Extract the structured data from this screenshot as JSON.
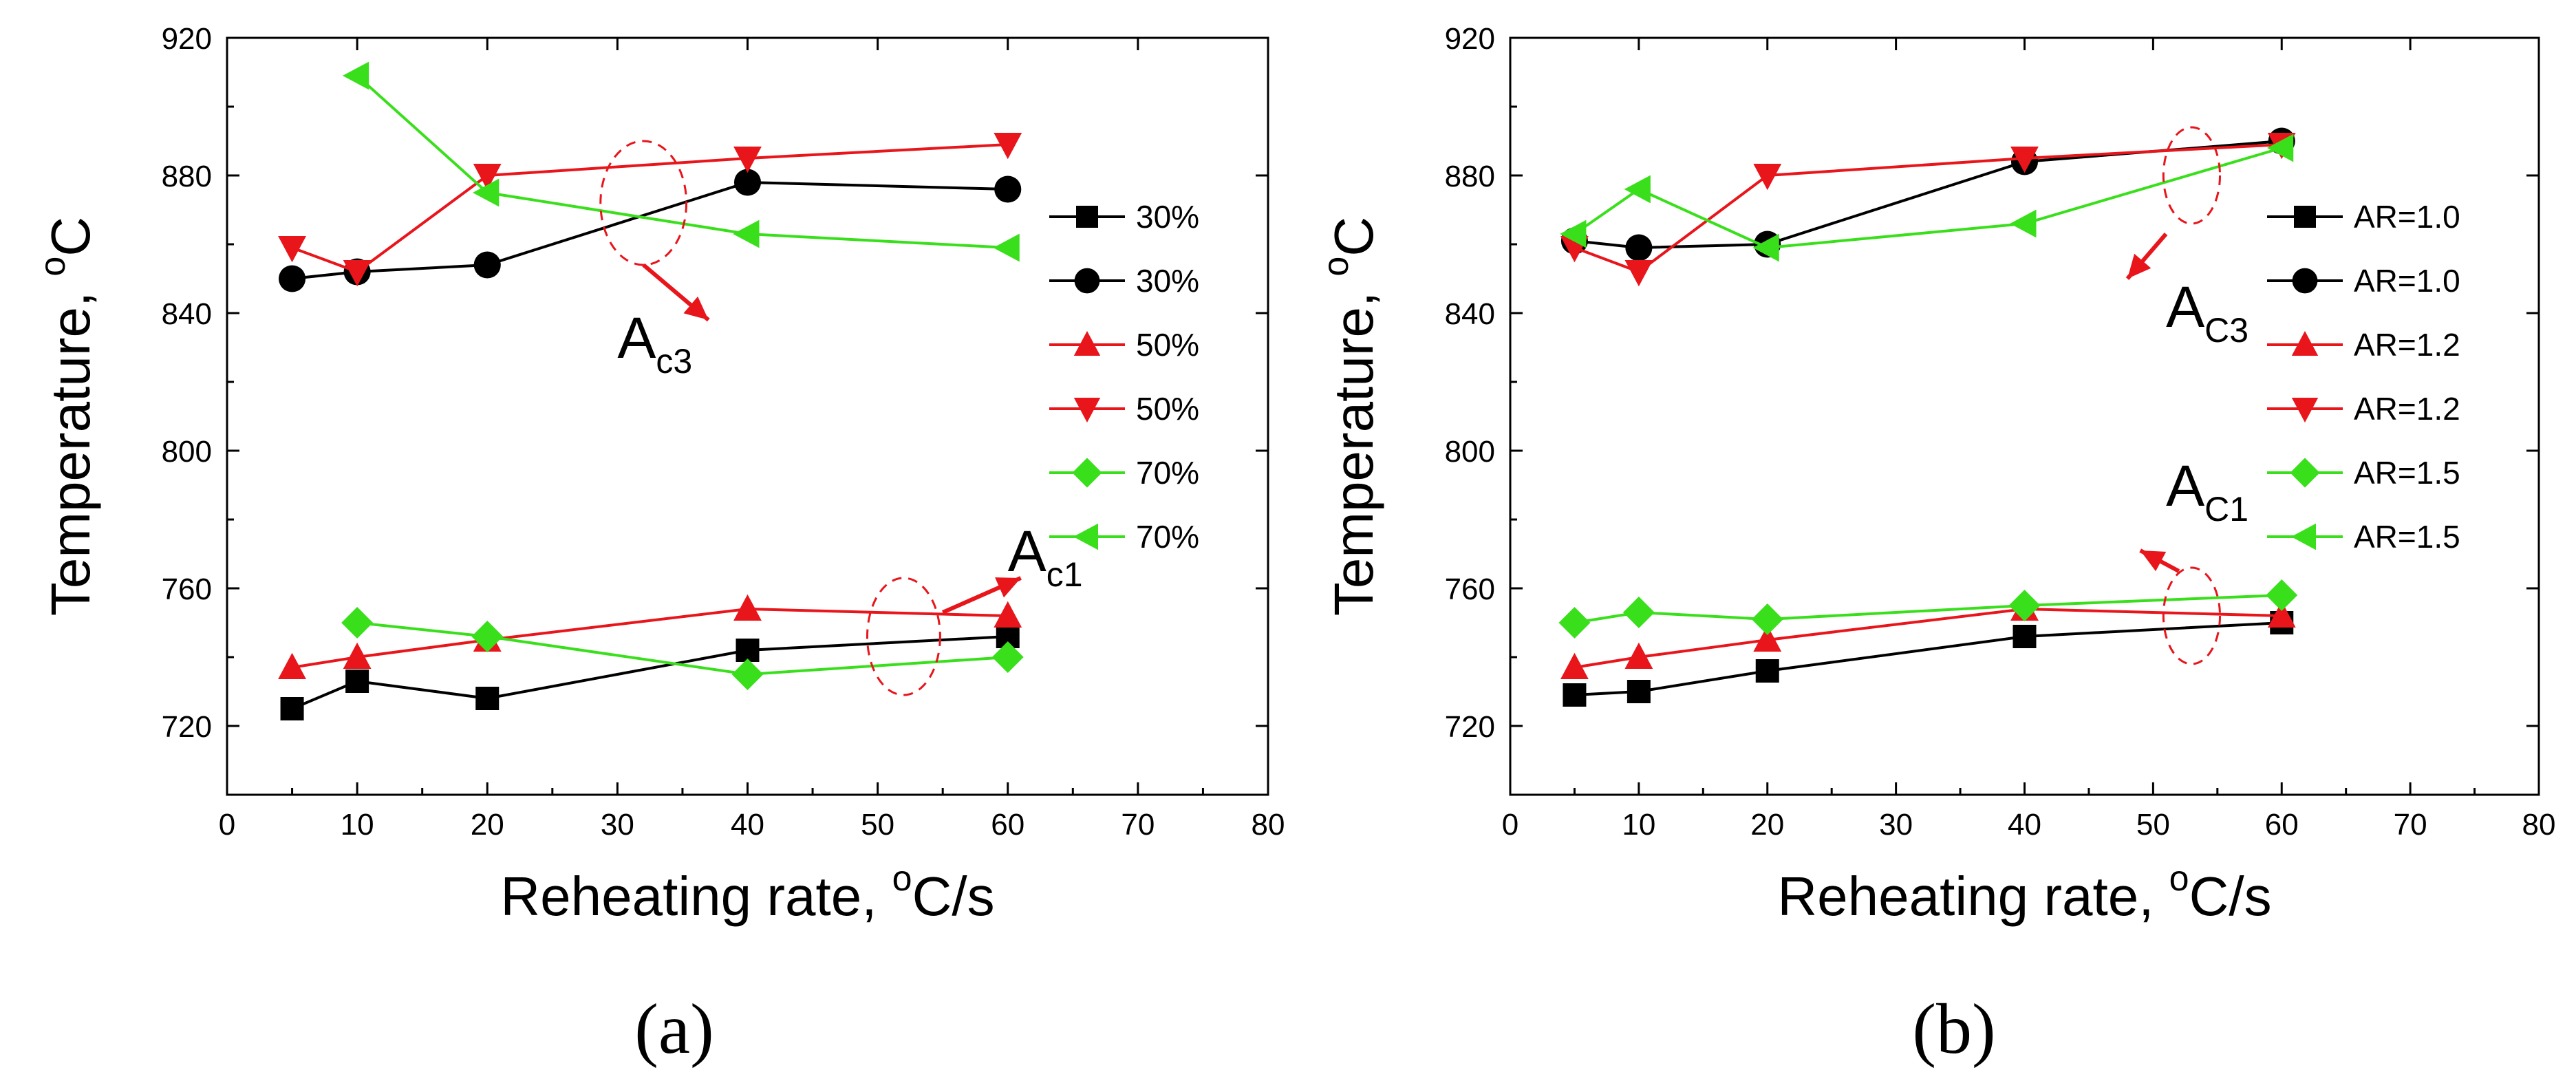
{
  "colors": {
    "black": "#000000",
    "red": "#e8151b",
    "green": "#3adf1c",
    "axis": "#000000"
  },
  "chart_data": [
    {
      "type": "line",
      "panel_label": "(a)",
      "xlabel": "Reheating rate, ",
      "xlabel_unit_sup": "o",
      "xlabel_unit": "C/s",
      "ylabel": "Temperature, ",
      "ylabel_unit_sup": "o",
      "ylabel_unit": "C",
      "xlim": [
        0,
        80
      ],
      "ylim": [
        700,
        920
      ],
      "xticks": [
        "0",
        "10",
        "20",
        "30",
        "40",
        "50",
        "60",
        "70",
        "80"
      ],
      "yticks": [
        "720",
        "760",
        "800",
        "840",
        "880",
        "920"
      ],
      "legend_position": "right-middle",
      "series": [
        {
          "name": "30%",
          "color": "#000000",
          "marker": "square",
          "x": [
            5,
            10,
            20,
            40,
            60
          ],
          "y": [
            725,
            733,
            728,
            742,
            746
          ]
        },
        {
          "name": "30%",
          "color": "#000000",
          "marker": "circle",
          "x": [
            5,
            10,
            20,
            40,
            60
          ],
          "y": [
            850,
            852,
            854,
            878,
            876
          ]
        },
        {
          "name": "50%",
          "color": "#e8151b",
          "marker": "triangle-up",
          "x": [
            5,
            10,
            20,
            40,
            60
          ],
          "y": [
            737,
            740,
            745,
            754,
            752
          ]
        },
        {
          "name": "50%",
          "color": "#e8151b",
          "marker": "triangle-down",
          "x": [
            5,
            10,
            20,
            40,
            60
          ],
          "y": [
            859,
            852,
            880,
            885,
            889
          ]
        },
        {
          "name": "70%",
          "color": "#3adf1c",
          "marker": "diamond",
          "x": [
            10,
            20,
            40,
            60
          ],
          "y": [
            750,
            746,
            735,
            740
          ]
        },
        {
          "name": "70%",
          "color": "#3adf1c",
          "marker": "triangle-left",
          "x": [
            10,
            20,
            40,
            60
          ],
          "y": [
            909,
            875,
            863,
            859
          ]
        }
      ],
      "annotations": [
        {
          "label": "A",
          "sub": "c3",
          "text_at": [
            30,
            827
          ],
          "ellipse_center": [
            32,
            872
          ],
          "ellipse_r": [
            3.3,
            18
          ],
          "arrow_from": [
            32,
            854
          ],
          "arrow_to": [
            37,
            838
          ]
        },
        {
          "label": "A",
          "sub": "c1",
          "text_at": [
            60,
            765
          ],
          "ellipse_center": [
            52,
            746
          ],
          "ellipse_r": [
            2.8,
            17
          ],
          "arrow_from": [
            55,
            753
          ],
          "arrow_to": [
            61,
            763
          ]
        }
      ]
    },
    {
      "type": "line",
      "panel_label": "(b)",
      "xlabel": "Reheating rate, ",
      "xlabel_unit_sup": "o",
      "xlabel_unit": "C/s",
      "ylabel": "Temperature, ",
      "ylabel_unit_sup": "o",
      "ylabel_unit": "C",
      "xlim": [
        0,
        80
      ],
      "ylim": [
        700,
        920
      ],
      "xticks": [
        "0",
        "10",
        "20",
        "30",
        "40",
        "50",
        "60",
        "70",
        "80"
      ],
      "yticks": [
        "720",
        "760",
        "800",
        "840",
        "880",
        "920"
      ],
      "legend_position": "right-middle",
      "series": [
        {
          "name": "AR=1.0",
          "color": "#000000",
          "marker": "square",
          "x": [
            5,
            10,
            20,
            40,
            60
          ],
          "y": [
            729,
            730,
            736,
            746,
            750
          ]
        },
        {
          "name": "AR=1.0",
          "color": "#000000",
          "marker": "circle",
          "x": [
            5,
            10,
            20,
            40,
            60
          ],
          "y": [
            861,
            859,
            860,
            884,
            890
          ]
        },
        {
          "name": "AR=1.2",
          "color": "#e8151b",
          "marker": "triangle-up",
          "x": [
            5,
            10,
            20,
            40,
            60
          ],
          "y": [
            737,
            740,
            745,
            754,
            752
          ]
        },
        {
          "name": "AR=1.2",
          "color": "#e8151b",
          "marker": "triangle-down",
          "x": [
            5,
            10,
            20,
            40,
            60
          ],
          "y": [
            859,
            852,
            880,
            885,
            889
          ]
        },
        {
          "name": "AR=1.5",
          "color": "#3adf1c",
          "marker": "diamond",
          "x": [
            5,
            10,
            20,
            40,
            60
          ],
          "y": [
            750,
            753,
            751,
            755,
            758
          ]
        },
        {
          "name": "AR=1.5",
          "color": "#3adf1c",
          "marker": "triangle-left",
          "x": [
            5,
            10,
            20,
            40,
            60
          ],
          "y": [
            863,
            876,
            859,
            866,
            888
          ]
        }
      ],
      "annotations": [
        {
          "label": "A",
          "sub": "C3",
          "text_at": [
            51,
            836
          ],
          "ellipse_center": [
            53,
            880
          ],
          "ellipse_r": [
            2.2,
            14
          ],
          "arrow_from": [
            51,
            863
          ],
          "arrow_to": [
            48,
            850
          ]
        },
        {
          "label": "A",
          "sub": "C1",
          "text_at": [
            51,
            784
          ],
          "ellipse_center": [
            53,
            752
          ],
          "ellipse_r": [
            2.2,
            14
          ],
          "arrow_from": [
            52,
            765
          ],
          "arrow_to": [
            49,
            771
          ]
        }
      ]
    }
  ]
}
